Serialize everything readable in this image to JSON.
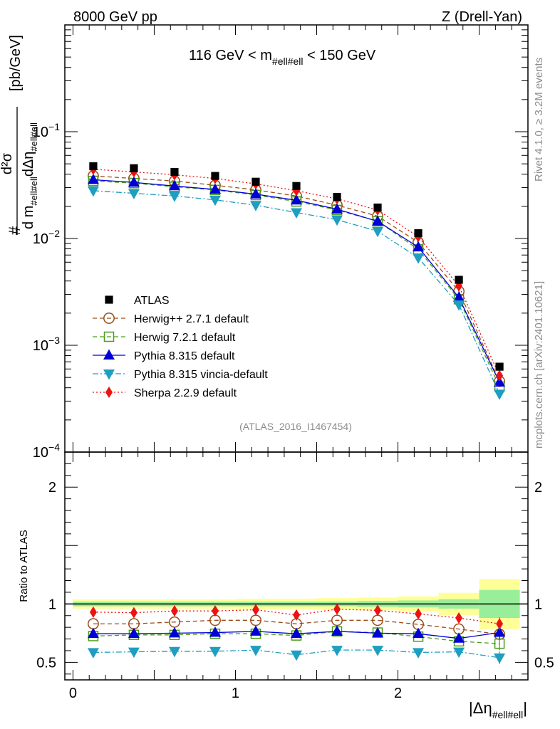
{
  "header": {
    "left": "8000 GeV pp",
    "right": "Z (Drell-Yan)"
  },
  "side_text": {
    "rivet": "Rivet 4.1.0, ≥ 3.2M events",
    "source": "mcplots.cern.ch [arXiv:2401.10621]"
  },
  "chart_data": {
    "type": "line",
    "title": "116 GeV < m#ell#ell < 150 GeV",
    "title_parts": {
      "pre": "116 GeV < m",
      "sub": "#ell#ell",
      "post": " < 150 GeV"
    },
    "analysis_label": "(ATLAS_2016_I1467454)",
    "ylabel": "#  d²σ / d m#ell#ell dΔη#ell#ell  [pb/GeV]",
    "ylabel_parts": {
      "hash": "#",
      "num": "d²σ",
      "den_d": "d m",
      "den_sub": "#ell#ell",
      "den_deta": "dΔη",
      "den_sub2": "#ell#ell",
      "unit": "[pb/GeV]"
    },
    "xlabel": "|Δη#ell#ell|",
    "xlabel_parts": {
      "main": "|Δη",
      "sub": "#ell#ell",
      "end": "|"
    },
    "ratio_ylabel": "Ratio to ATLAS",
    "yscale": "log",
    "ylim": [
      0.0001,
      1
    ],
    "xlim": [
      -0.05,
      2.8
    ],
    "ratio_ylim": [
      0.35,
      2.3
    ],
    "x_ticks": [
      "0",
      "1",
      "2"
    ],
    "main_y_ticks": [
      {
        "value": 0.1,
        "base": "10",
        "exp": "−1"
      },
      {
        "value": 0.01,
        "base": "10",
        "exp": "−2"
      },
      {
        "value": 0.001,
        "base": "10",
        "exp": "−3"
      },
      {
        "value": 0.0001,
        "base": "10",
        "exp": "−4"
      }
    ],
    "ratio_y_ticks": [
      "0.5",
      "1",
      "2"
    ],
    "x": [
      0.125,
      0.375,
      0.625,
      0.875,
      1.125,
      1.375,
      1.625,
      1.875,
      2.125,
      2.375,
      2.625
    ],
    "bin_edges": [
      0,
      0.25,
      0.5,
      0.75,
      1.0,
      1.25,
      1.5,
      1.75,
      2.0,
      2.25,
      2.5,
      2.75
    ],
    "data": {
      "name": "ATLAS",
      "values": [
        0.0475,
        0.0455,
        0.042,
        0.0385,
        0.034,
        0.031,
        0.0245,
        0.0195,
        0.0112,
        0.0041,
        0.00063
      ],
      "band_inner": [
        0.02,
        0.02,
        0.02,
        0.02,
        0.02,
        0.02,
        0.02,
        0.025,
        0.03,
        0.04,
        0.12
      ],
      "band_outer": [
        0.04,
        0.04,
        0.04,
        0.04,
        0.045,
        0.045,
        0.05,
        0.055,
        0.065,
        0.095,
        0.215
      ]
    },
    "series": [
      {
        "name": "Herwig++ 2.7.1 default",
        "color": "#994c19",
        "marker": "circle-open",
        "dash": "6,4",
        "values": [
          0.0385,
          0.0365,
          0.0345,
          0.0315,
          0.0285,
          0.025,
          0.0205,
          0.0162,
          0.0092,
          0.0032,
          0.00046
        ],
        "ratio": [
          0.83,
          0.83,
          0.845,
          0.86,
          0.86,
          0.83,
          0.86,
          0.86,
          0.825,
          0.785,
          0.74
        ]
      },
      {
        "name": "Herwig 7.2.1 default",
        "color": "#4a9e1c",
        "marker": "square-open",
        "dash": "6,4",
        "values": [
          0.0345,
          0.033,
          0.0305,
          0.0285,
          0.0255,
          0.0222,
          0.0185,
          0.0145,
          0.0079,
          0.0027,
          0.00041
        ],
        "ratio": [
          0.725,
          0.735,
          0.735,
          0.745,
          0.745,
          0.73,
          0.765,
          0.755,
          0.72,
          0.68,
          0.66
        ]
      },
      {
        "name": "Pythia 8.315 default",
        "color": "#0000d6",
        "marker": "triangle-up",
        "dash": "none",
        "values": [
          0.0355,
          0.0335,
          0.031,
          0.0288,
          0.026,
          0.0228,
          0.0188,
          0.0145,
          0.0083,
          0.0028,
          0.00045
        ],
        "ratio": [
          0.745,
          0.745,
          0.75,
          0.755,
          0.765,
          0.745,
          0.765,
          0.75,
          0.745,
          0.705,
          0.755
        ]
      },
      {
        "name": "Pythia 8.315 vincia-default",
        "color": "#1e9ec0",
        "marker": "triangle-down",
        "dash": "8,3,2,3",
        "values": [
          0.028,
          0.0265,
          0.025,
          0.023,
          0.0205,
          0.0175,
          0.015,
          0.0117,
          0.0066,
          0.0024,
          0.00035
        ],
        "ratio": [
          0.585,
          0.59,
          0.595,
          0.595,
          0.605,
          0.565,
          0.605,
          0.605,
          0.585,
          0.59,
          0.54
        ]
      },
      {
        "name": "Sherpa 2.2.9 default",
        "color": "#ee1111",
        "marker": "diamond",
        "dash": "2,3",
        "values": [
          0.0445,
          0.042,
          0.0395,
          0.0365,
          0.0325,
          0.028,
          0.0235,
          0.0185,
          0.0104,
          0.0036,
          0.00052
        ],
        "ratio": [
          0.93,
          0.925,
          0.94,
          0.94,
          0.95,
          0.905,
          0.955,
          0.945,
          0.915,
          0.88,
          0.83
        ]
      }
    ]
  }
}
